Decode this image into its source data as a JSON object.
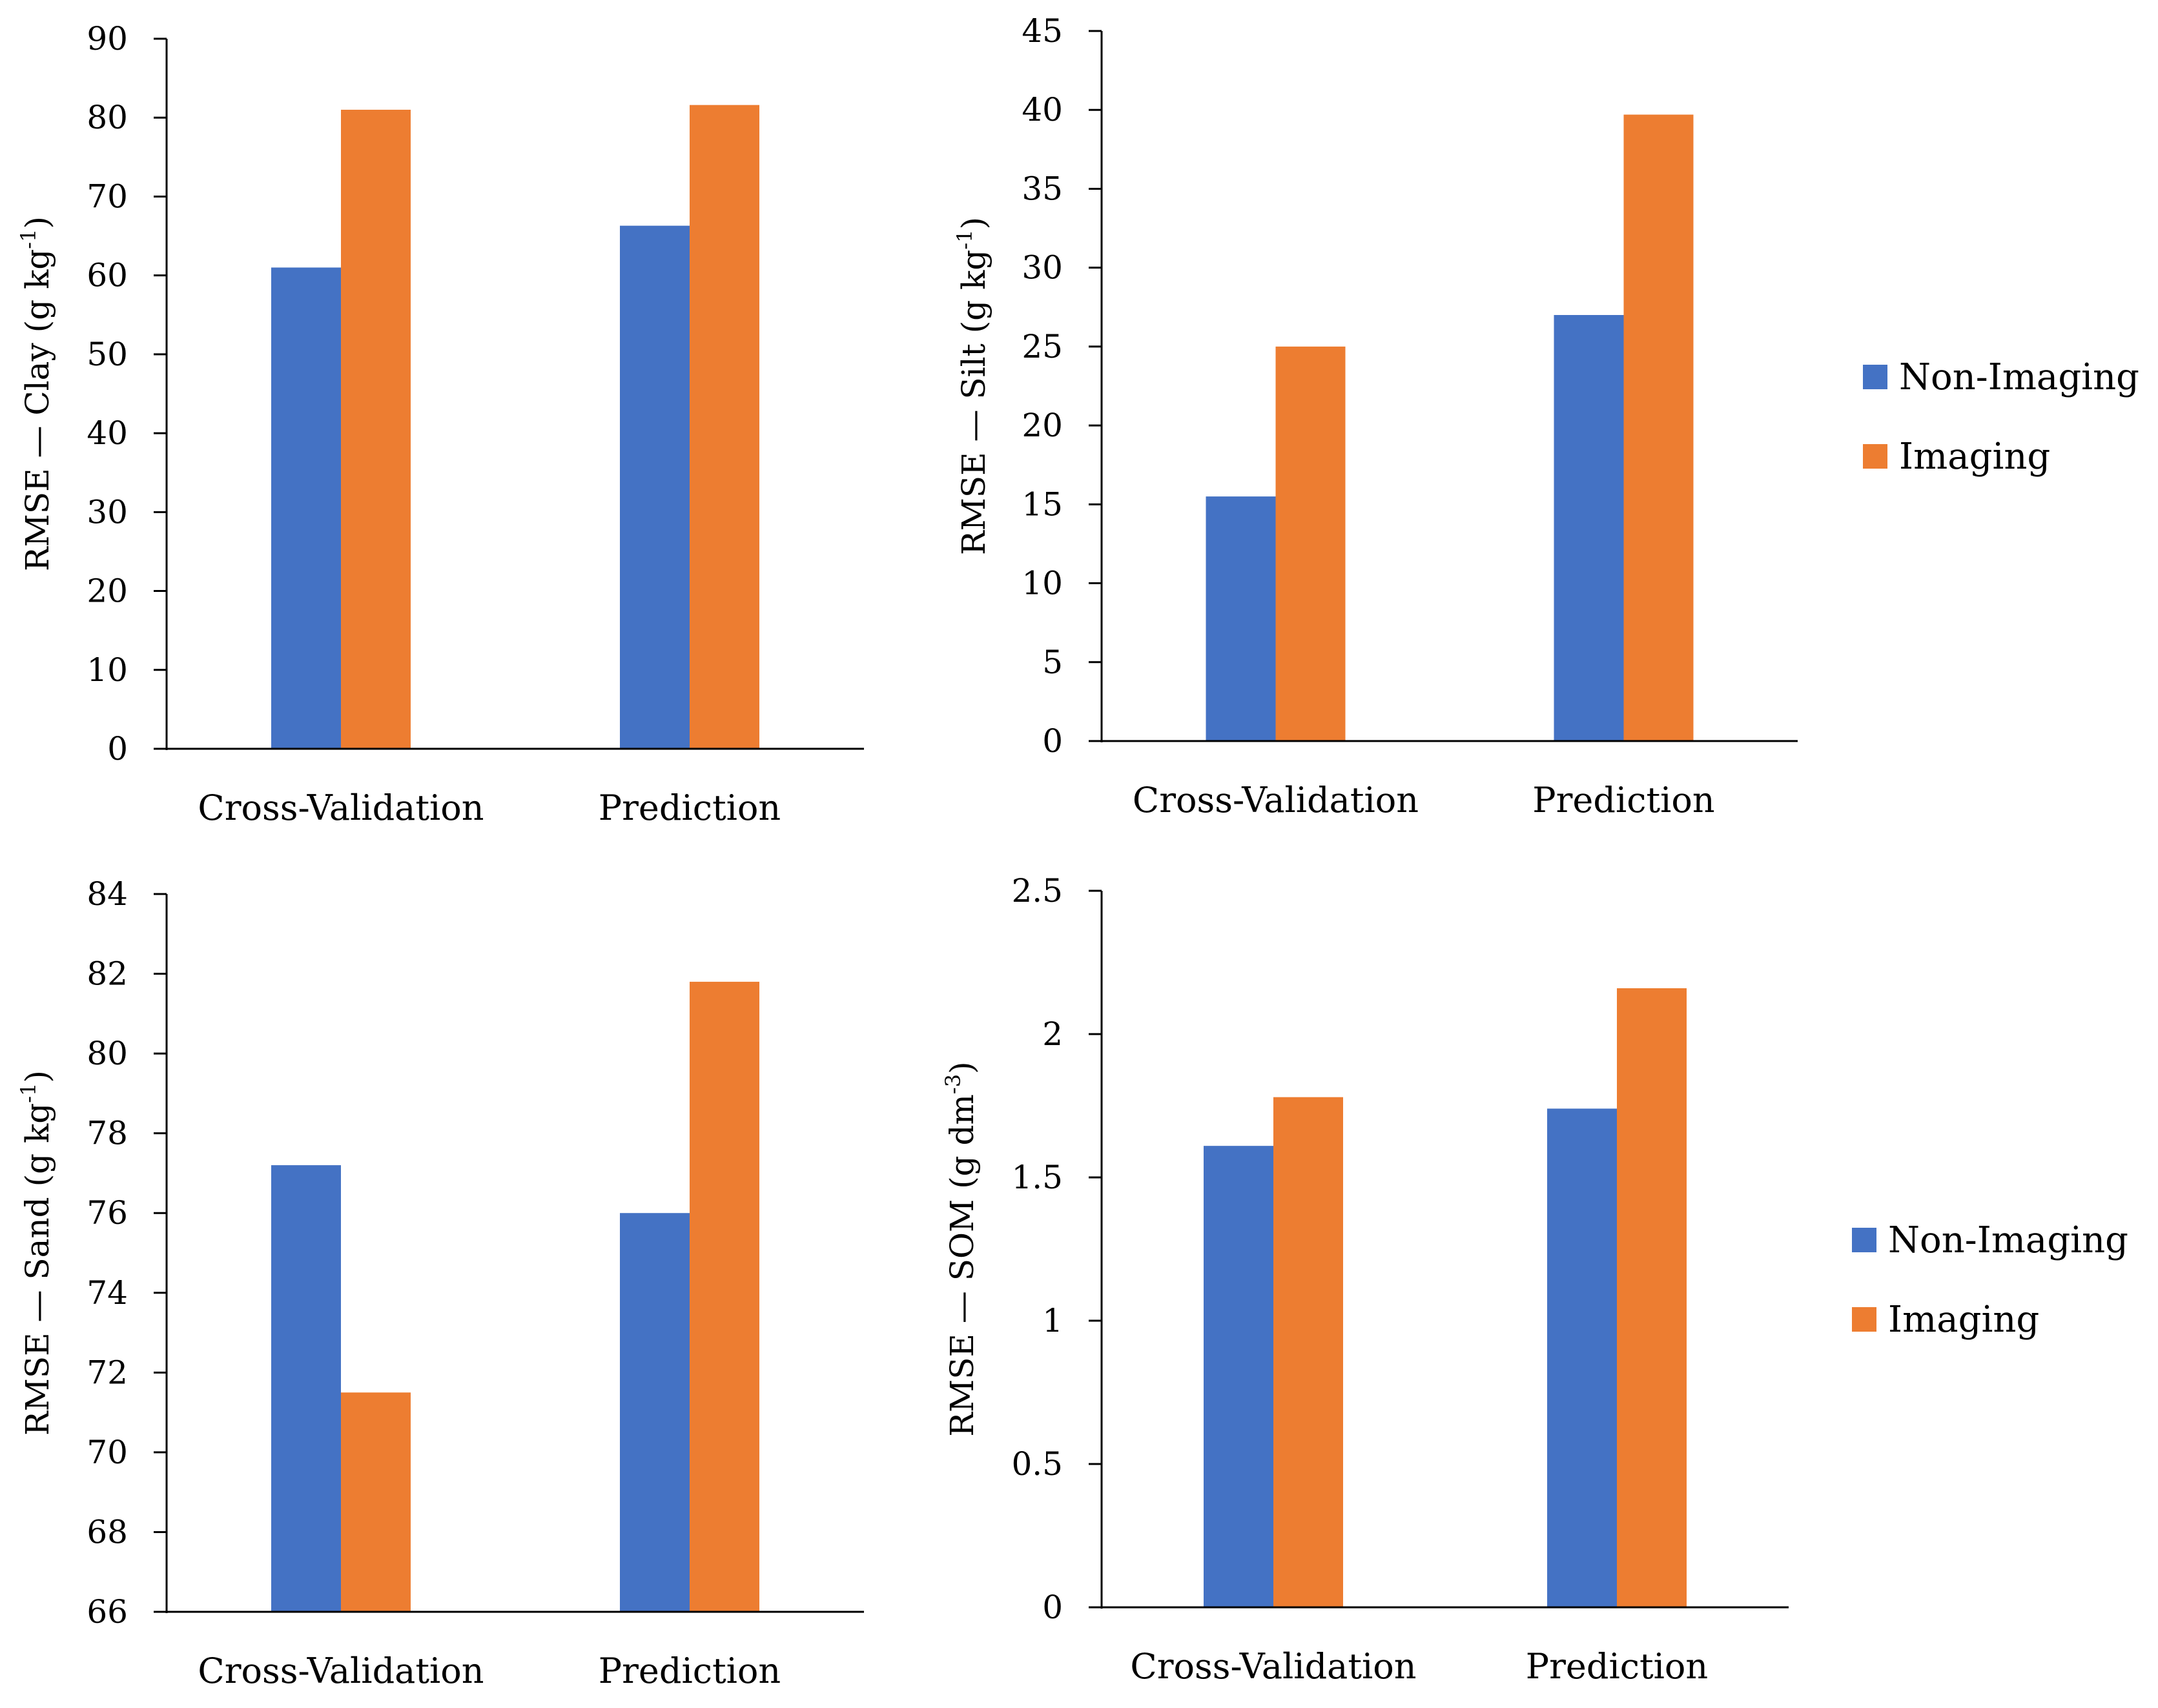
{
  "colors": {
    "non_imaging": "#4472C4",
    "imaging": "#ED7D31",
    "axis": "#000000"
  },
  "chart_data": [
    {
      "type": "bar",
      "id": "clay",
      "title": "",
      "ylabel": "RMSE — Clay (g kg",
      "ylabel_sup": "-1",
      "ylabel_end": ")",
      "categories": [
        "Cross-Validation",
        "Prediction"
      ],
      "ylim": [
        0,
        90
      ],
      "yticks": [
        "0",
        "10",
        "20",
        "30",
        "40",
        "50",
        "60",
        "70",
        "80",
        "90"
      ],
      "series": [
        {
          "name": "Non-Imaging",
          "values": [
            61,
            66.3
          ]
        },
        {
          "name": "Imaging",
          "values": [
            81,
            81.6
          ]
        }
      ],
      "show_legend": false
    },
    {
      "type": "bar",
      "id": "silt",
      "title": "",
      "ylabel": "RMSE — Silt (g kg",
      "ylabel_sup": "-1",
      "ylabel_end": ")",
      "categories": [
        "Cross-Validation",
        "Prediction"
      ],
      "ylim": [
        0,
        45
      ],
      "yticks": [
        "0",
        "5",
        "10",
        "15",
        "20",
        "25",
        "30",
        "35",
        "40",
        "45"
      ],
      "series": [
        {
          "name": "Non-Imaging",
          "values": [
            15.5,
            27
          ]
        },
        {
          "name": "Imaging",
          "values": [
            25,
            39.7
          ]
        }
      ],
      "show_legend": true,
      "legend_position": "right"
    },
    {
      "type": "bar",
      "id": "sand",
      "title": "",
      "ylabel": "RMSE — Sand (g kg",
      "ylabel_sup": "-1",
      "ylabel_end": ")",
      "categories": [
        "Cross-Validation",
        "Prediction"
      ],
      "ylim": [
        66,
        84
      ],
      "yticks": [
        "66",
        "68",
        "70",
        "72",
        "74",
        "76",
        "78",
        "80",
        "82",
        "84"
      ],
      "series": [
        {
          "name": "Non-Imaging",
          "values": [
            77.2,
            76
          ]
        },
        {
          "name": "Imaging",
          "values": [
            71.5,
            81.8
          ]
        }
      ],
      "show_legend": false
    },
    {
      "type": "bar",
      "id": "som",
      "title": "",
      "ylabel": "RMSE — SOM (g dm",
      "ylabel_sup": "-3",
      "ylabel_end": ")",
      "categories": [
        "Cross-Validation",
        "Prediction"
      ],
      "ylim": [
        0,
        2.5
      ],
      "yticks": [
        "0",
        "0.5",
        "1",
        "1.5",
        "2",
        "2.5"
      ],
      "series": [
        {
          "name": "Non-Imaging",
          "values": [
            1.61,
            1.74
          ]
        },
        {
          "name": "Imaging",
          "values": [
            1.78,
            2.16
          ]
        }
      ],
      "show_legend": true,
      "legend_position": "right"
    }
  ]
}
